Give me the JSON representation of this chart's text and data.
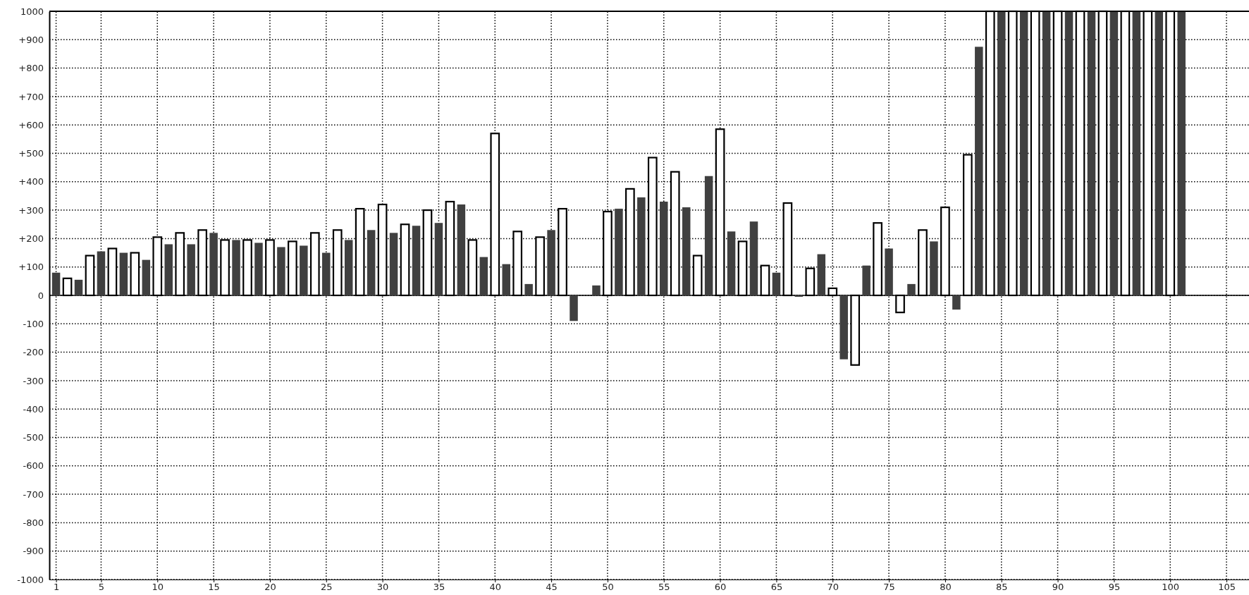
{
  "chart_data": {
    "type": "bar",
    "series": [
      {
        "color": "#404040",
        "x": [
          1,
          3,
          5,
          7,
          9,
          11,
          13,
          15,
          17,
          19,
          21,
          23,
          25,
          27,
          29,
          31,
          33,
          35,
          37,
          39,
          41,
          43,
          45,
          47,
          49,
          51,
          53,
          55,
          57,
          59,
          61,
          63,
          65,
          67,
          69,
          71,
          73,
          75,
          77,
          79,
          81,
          83,
          85,
          87,
          89,
          91,
          93,
          95,
          97,
          99,
          101
        ],
        "values": [
          80,
          55,
          155,
          150,
          125,
          180,
          180,
          220,
          195,
          185,
          170,
          175,
          150,
          195,
          230,
          220,
          245,
          255,
          320,
          135,
          110,
          40,
          230,
          -90,
          35,
          305,
          345,
          330,
          310,
          420,
          225,
          260,
          80,
          -5,
          145,
          -225,
          105,
          165,
          40,
          190,
          -50,
          875,
          1000,
          1000,
          1000,
          1000,
          1000,
          1000,
          1000,
          1000,
          1000
        ]
      },
      {
        "color": "#ffffff",
        "x": [
          2,
          4,
          6,
          8,
          10,
          12,
          14,
          16,
          18,
          20,
          22,
          24,
          26,
          28,
          30,
          32,
          34,
          36,
          38,
          40,
          42,
          44,
          46,
          48,
          50,
          52,
          54,
          56,
          58,
          60,
          62,
          64,
          66,
          68,
          70,
          72,
          74,
          76,
          78,
          80,
          82,
          84,
          86,
          88,
          90,
          92,
          94,
          96,
          98,
          100
        ],
        "values": [
          60,
          140,
          165,
          150,
          205,
          220,
          230,
          195,
          195,
          195,
          190,
          220,
          230,
          305,
          320,
          250,
          300,
          330,
          195,
          570,
          225,
          205,
          305,
          null,
          295,
          375,
          485,
          435,
          140,
          585,
          190,
          105,
          325,
          95,
          25,
          -245,
          255,
          -60,
          230,
          310,
          495,
          1000,
          1000,
          1000,
          1000,
          1000,
          1000,
          1000,
          1000,
          1000
        ]
      }
    ],
    "xlim": [
      0.4,
      107
    ],
    "xticks": [
      1,
      5,
      10,
      15,
      20,
      25,
      30,
      35,
      40,
      45,
      50,
      55,
      60,
      65,
      70,
      75,
      80,
      85,
      90,
      95,
      100,
      105
    ],
    "ylim": [
      -1000,
      1000
    ],
    "yticks": [
      -1000,
      -900,
      -800,
      -700,
      -600,
      -500,
      -400,
      -300,
      -200,
      -100,
      0,
      {
        "value": 100,
        "label": "+100"
      },
      {
        "value": 200,
        "label": "+200"
      },
      {
        "value": 300,
        "label": "+300"
      },
      {
        "value": 400,
        "label": "+400"
      },
      {
        "value": 500,
        "label": "+500"
      },
      {
        "value": 600,
        "label": "+600"
      },
      {
        "value": 700,
        "label": "+700"
      },
      {
        "value": 800,
        "label": "+800"
      },
      {
        "value": 900,
        "label": "+900"
      },
      1000
    ],
    "grid": true
  }
}
